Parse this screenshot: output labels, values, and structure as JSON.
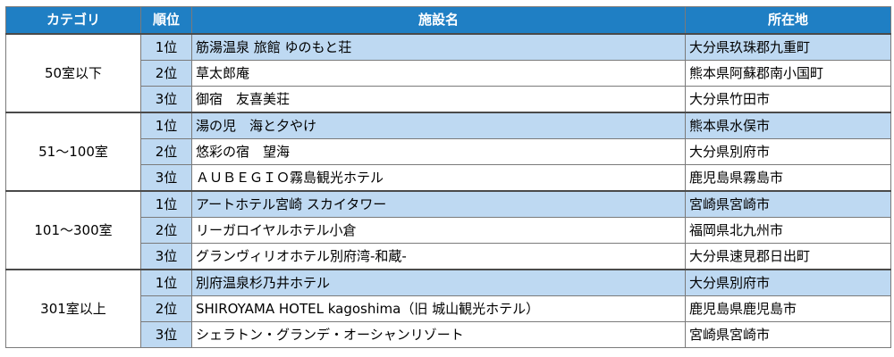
{
  "table": {
    "headers": {
      "category": "カテゴリ",
      "rank": "順位",
      "facility": "施設名",
      "location": "所在地"
    },
    "groups": [
      {
        "category": "50室以下",
        "rows": [
          {
            "rank": "1位",
            "name": "筋湯温泉 旅館 ゆのもと荘",
            "location": "大分県玖珠郡九重町"
          },
          {
            "rank": "2位",
            "name": "草太郎庵",
            "location": "熊本県阿蘇郡南小国町"
          },
          {
            "rank": "3位",
            "name": "御宿　友喜美荘",
            "location": "大分県竹田市"
          }
        ]
      },
      {
        "category": "51～100室",
        "rows": [
          {
            "rank": "1位",
            "name": "湯の児　海と夕やけ",
            "location": "熊本県水俣市"
          },
          {
            "rank": "2位",
            "name": "悠彩の宿　望海",
            "location": "大分県別府市"
          },
          {
            "rank": "3位",
            "name": "ＡＵＢＥＧＩＯ霧島観光ホテル",
            "location": "鹿児島県霧島市"
          }
        ]
      },
      {
        "category": "101～300室",
        "rows": [
          {
            "rank": "1位",
            "name": "アートホテル宮崎 スカイタワー",
            "location": "宮崎県宮崎市"
          },
          {
            "rank": "2位",
            "name": "リーガロイヤルホテル小倉",
            "location": "福岡県北九州市"
          },
          {
            "rank": "3位",
            "name": "グランヴィリオホテル別府湾-和蔵-",
            "location": "大分県速見郡日出町"
          }
        ]
      },
      {
        "category": "301室以上",
        "rows": [
          {
            "rank": "1位",
            "name": "別府温泉杉乃井ホテル",
            "location": "大分県別府市"
          },
          {
            "rank": "2位",
            "name": "SHIROYAMA HOTEL kagoshima（旧 城山観光ホテル）",
            "location": "鹿児島県鹿児島市"
          },
          {
            "rank": "3位",
            "name": "シェラトン・グランデ・オーシャンリゾート",
            "location": "宮崎県宮崎市"
          }
        ]
      }
    ]
  },
  "colors": {
    "header_bg": "#1f7fc4",
    "highlight_bg": "#bed9f2"
  }
}
